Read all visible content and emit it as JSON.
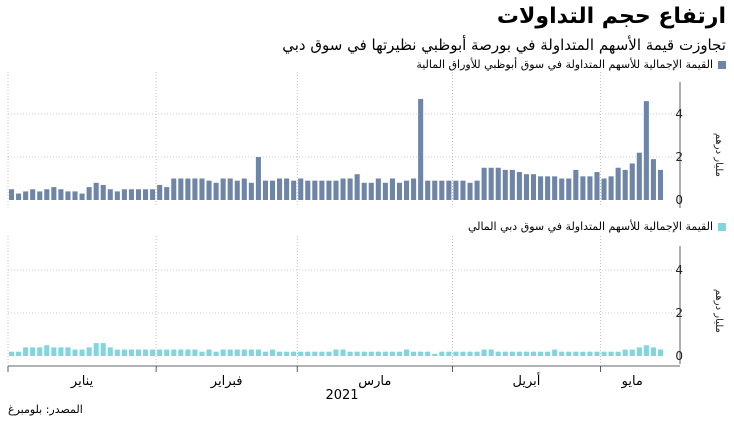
{
  "title": "ارتفاع حجم التداولات",
  "subtitle": "تجاوزت قيمة الأسهم المتداولة في بورصة أبوظبي نظيرتها في سوق دبي",
  "source": "المصدر: بلومبرغ",
  "colors": {
    "abu_dhabi": "#6f85a8",
    "dubai": "#7fd6dc",
    "axis": "#333333",
    "grid": "#9a9a9a"
  },
  "chart_data": [
    {
      "type": "bar",
      "legend": "القيمة الإجمالية للأسهم المتداولة في سوق أبوظبي للأوراق المالية",
      "ylabel": "مليار درهم",
      "ylim": [
        0,
        5
      ],
      "yticks": [
        0,
        2,
        4
      ],
      "values": [
        0.5,
        0.3,
        0.4,
        0.5,
        0.4,
        0.5,
        0.6,
        0.5,
        0.4,
        0.4,
        0.3,
        0.6,
        0.8,
        0.7,
        0.5,
        0.4,
        0.5,
        0.5,
        0.5,
        0.5,
        0.5,
        0.7,
        0.6,
        1.0,
        1.0,
        1.0,
        1.0,
        1.0,
        0.9,
        0.8,
        1.0,
        1.0,
        0.9,
        1.0,
        0.8,
        2.0,
        0.9,
        0.9,
        1.0,
        1.0,
        0.9,
        1.0,
        0.9,
        0.9,
        0.9,
        0.9,
        0.9,
        1.0,
        1.0,
        1.2,
        0.8,
        0.8,
        1.0,
        0.8,
        1.0,
        0.8,
        0.9,
        1.0,
        4.7,
        0.9,
        0.9,
        0.9,
        0.9,
        0.9,
        0.9,
        0.8,
        0.9,
        1.5,
        1.5,
        1.5,
        1.4,
        1.4,
        1.3,
        1.2,
        1.2,
        1.1,
        1.1,
        1.1,
        1.0,
        1.0,
        1.4,
        1.1,
        1.1,
        1.3,
        1.0,
        1.1,
        1.5,
        1.4,
        1.7,
        2.2,
        4.6,
        1.9,
        1.4
      ]
    },
    {
      "type": "bar",
      "legend": "القيمة الإجمالية للأسهم المتداولة في سوق دبي المالي",
      "ylabel": "مليار درهم",
      "ylim": [
        0,
        5
      ],
      "yticks": [
        0,
        2,
        4
      ],
      "values": [
        0.2,
        0.2,
        0.4,
        0.4,
        0.4,
        0.5,
        0.4,
        0.4,
        0.4,
        0.3,
        0.3,
        0.4,
        0.6,
        0.6,
        0.4,
        0.3,
        0.3,
        0.3,
        0.3,
        0.3,
        0.3,
        0.3,
        0.3,
        0.3,
        0.3,
        0.3,
        0.3,
        0.2,
        0.3,
        0.2,
        0.3,
        0.3,
        0.3,
        0.3,
        0.3,
        0.3,
        0.2,
        0.3,
        0.2,
        0.2,
        0.2,
        0.2,
        0.2,
        0.2,
        0.2,
        0.2,
        0.3,
        0.3,
        0.2,
        0.2,
        0.2,
        0.2,
        0.2,
        0.2,
        0.2,
        0.2,
        0.3,
        0.2,
        0.2,
        0.2,
        0.1,
        0.2,
        0.2,
        0.2,
        0.2,
        0.2,
        0.2,
        0.3,
        0.3,
        0.2,
        0.2,
        0.2,
        0.2,
        0.2,
        0.2,
        0.2,
        0.2,
        0.3,
        0.2,
        0.2,
        0.2,
        0.2,
        0.2,
        0.2,
        0.2,
        0.2,
        0.2,
        0.3,
        0.3,
        0.4,
        0.5,
        0.4,
        0.3
      ]
    }
  ],
  "x_axis": {
    "months": [
      {
        "label": "يناير",
        "start": 0,
        "end": 21
      },
      {
        "label": "فبراير",
        "start": 21,
        "end": 41
      },
      {
        "label": "مارس",
        "start": 41,
        "end": 63
      },
      {
        "label": "أبريل",
        "start": 63,
        "end": 84
      },
      {
        "label": "مايو",
        "start": 84,
        "end": 93
      }
    ],
    "year": "2021"
  }
}
